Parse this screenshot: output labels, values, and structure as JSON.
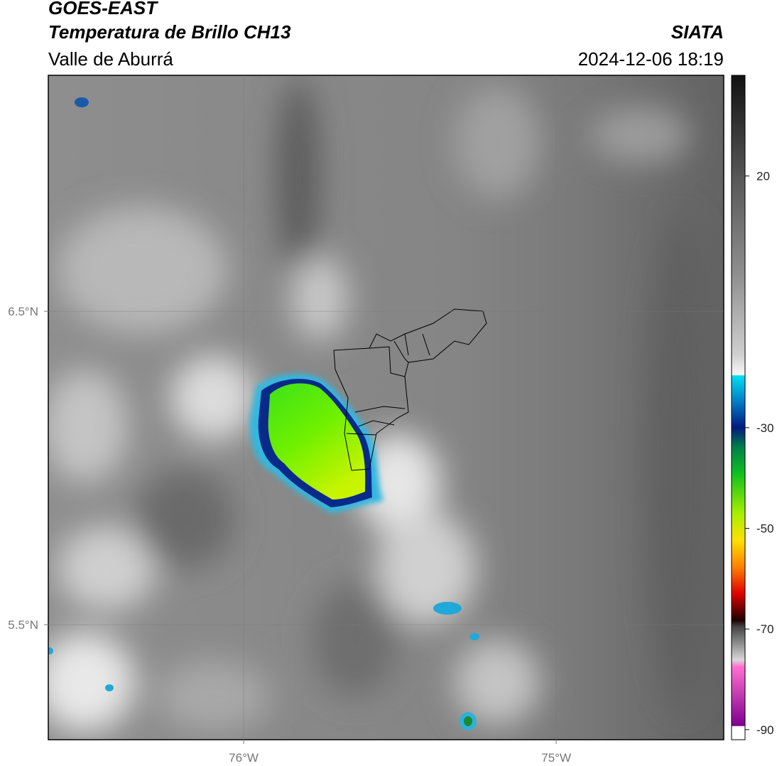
{
  "header": {
    "line1": "GOES-EAST",
    "line2": "Temperatura de Brillo CH13",
    "line3": "Valle de Aburrá",
    "source": "SIATA",
    "datetime": "2024-12-06 18:19"
  },
  "map": {
    "xlim": [
      -76.625,
      -74.464
    ],
    "ylim": [
      5.133,
      7.253
    ],
    "xticks": [
      {
        "value": -76,
        "label": "76°W"
      },
      {
        "value": -75,
        "label": "75°W"
      }
    ],
    "yticks": [
      {
        "value": 6.5,
        "label": "6.5°N"
      },
      {
        "value": 5.5,
        "label": "5.5°N"
      }
    ]
  },
  "colorbar": {
    "clim": [
      -92,
      40
    ],
    "ticks": [
      20,
      -30,
      -50,
      -70,
      -90
    ]
  }
}
